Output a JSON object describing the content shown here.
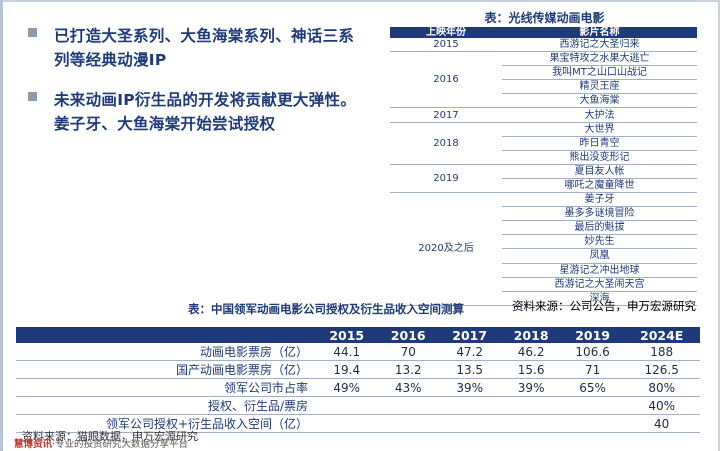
{
  "bullets": [
    "已打造大圣系列、大鱼海棠系列、神话三系列等经典动漫IP",
    "未来动画IP衍生品的开发将贡献更大弹性。姜子牙、大鱼海棠开始尝试授权"
  ],
  "table1": {
    "title": "表：光线传媒动画电影",
    "headers": [
      "上映年份",
      "影片名称"
    ],
    "groups": [
      {
        "year": "2015",
        "films": [
          "西游记之大圣归来"
        ]
      },
      {
        "year": "2016",
        "films": [
          "果宝特攻之水果大逃亡",
          "我叫MT之山口山战记",
          "精灵王座",
          "大鱼海棠"
        ]
      },
      {
        "year": "2017",
        "films": [
          "大护法"
        ]
      },
      {
        "year": "2018",
        "films": [
          "大世界",
          "昨日青空",
          "熊出没变形记"
        ]
      },
      {
        "year": "2019",
        "films": [
          "夏目友人帐",
          "哪吒之魔童降世"
        ]
      },
      {
        "year": "2020及之后",
        "films": [
          "姜子牙",
          "墨多多谜境冒险",
          "最后的魁拔",
          "妙先生",
          "凤凰",
          "星游记之冲出地球",
          "西游记之大圣闹天宫",
          "深海"
        ]
      }
    ],
    "source": "资料来源：公司公告，申万宏源研究"
  },
  "table2": {
    "title": "表：中国领军动画电影公司授权及衍生品收入空间测算",
    "headers": [
      "",
      "2015",
      "2016",
      "2017",
      "2018",
      "2019",
      "2024E"
    ],
    "rows": [
      [
        "动画电影票房（亿）",
        "44.1",
        "70",
        "47.2",
        "46.2",
        "106.6",
        "188"
      ],
      [
        "国产动画电影票房（亿）",
        "19.4",
        "13.2",
        "13.5",
        "15.6",
        "71",
        "126.5"
      ],
      [
        "领军公司市占率",
        "49%",
        "43%",
        "39%",
        "39%",
        "65%",
        "80%"
      ],
      [
        "授权、衍生品/票房",
        "",
        "",
        "",
        "",
        "",
        "40%"
      ],
      [
        "领军公司授权+衍生品收入空间（亿）",
        "",
        "",
        "",
        "",
        "",
        "40"
      ]
    ],
    "source": "资料来源：猫眼数据，申万宏源研究"
  },
  "footer": {
    "brand": "慧博资讯",
    "text": "·专业的投资研究大数据分享平台"
  },
  "colors": {
    "navy": "#1f3a7a",
    "bullet_gray": "#8c9aab"
  }
}
